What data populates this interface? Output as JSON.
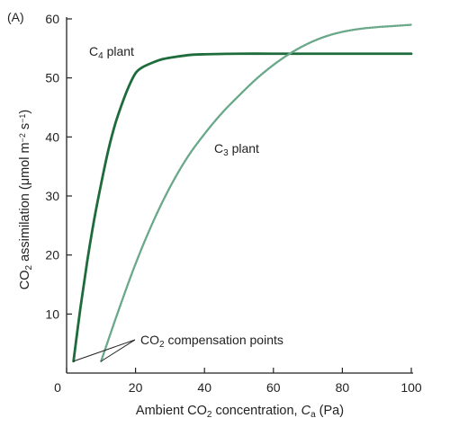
{
  "chart_data": {
    "type": "line",
    "panel_label": "(A)",
    "xlabel": {
      "parts": [
        {
          "t": "Ambient CO"
        },
        {
          "t": "2",
          "style": "sub"
        },
        {
          "t": " concentration, "
        },
        {
          "t": "C",
          "style": "italic"
        },
        {
          "t": "a",
          "style": "sub"
        },
        {
          "t": " (Pa)"
        }
      ]
    },
    "ylabel": {
      "parts": [
        {
          "t": "CO"
        },
        {
          "t": "2",
          "style": "sub"
        },
        {
          "t": " assimilation (μmol m"
        },
        {
          "t": "−2",
          "style": "sup"
        },
        {
          "t": " s"
        },
        {
          "t": "−1",
          "style": "sup"
        },
        {
          "t": ")"
        }
      ]
    },
    "xlim": [
      0,
      100
    ],
    "ylim": [
      0,
      60
    ],
    "x_ticks": [
      0,
      20,
      40,
      60,
      80,
      100
    ],
    "y_ticks": [
      10,
      20,
      30,
      40,
      50,
      60
    ],
    "x_origin_label": "0",
    "grid": false,
    "series": [
      {
        "name_parts": [
          {
            "t": "C"
          },
          {
            "t": "4",
            "style": "sub"
          },
          {
            "t": " plant"
          }
        ],
        "color": "#1e6b3c",
        "style": "solid",
        "x": [
          2,
          4,
          6,
          8,
          10,
          12,
          14,
          16,
          18,
          20,
          22,
          25,
          28,
          32,
          36,
          40,
          50,
          60,
          70,
          80,
          90,
          100
        ],
        "y": [
          2,
          11,
          19,
          26,
          32,
          37.5,
          42,
          45.5,
          48.5,
          50.8,
          51.8,
          52.6,
          53.2,
          53.6,
          53.9,
          54.0,
          54.1,
          54.1,
          54.1,
          54.1,
          54.1,
          54.1
        ]
      },
      {
        "name_parts": [
          {
            "t": "C"
          },
          {
            "t": "3",
            "style": "sub"
          },
          {
            "t": " plant"
          }
        ],
        "color": "#6aa88a",
        "style": "dotted",
        "x": [
          10,
          15,
          20,
          25,
          30,
          35,
          40,
          45,
          50,
          55,
          60,
          65,
          70,
          75,
          80,
          85,
          90,
          95,
          100
        ],
        "y": [
          2,
          10.5,
          18.5,
          25.5,
          31.5,
          36.5,
          40.5,
          44,
          47,
          49.8,
          52.2,
          54.2,
          55.8,
          57,
          57.8,
          58.3,
          58.6,
          58.8,
          59
        ]
      }
    ],
    "annotation": {
      "parts": [
        {
          "t": "CO"
        },
        {
          "t": "2",
          "style": "sub"
        },
        {
          "t": " compensation points"
        }
      ],
      "points": [
        [
          2,
          2
        ],
        [
          10,
          2
        ]
      ]
    }
  }
}
